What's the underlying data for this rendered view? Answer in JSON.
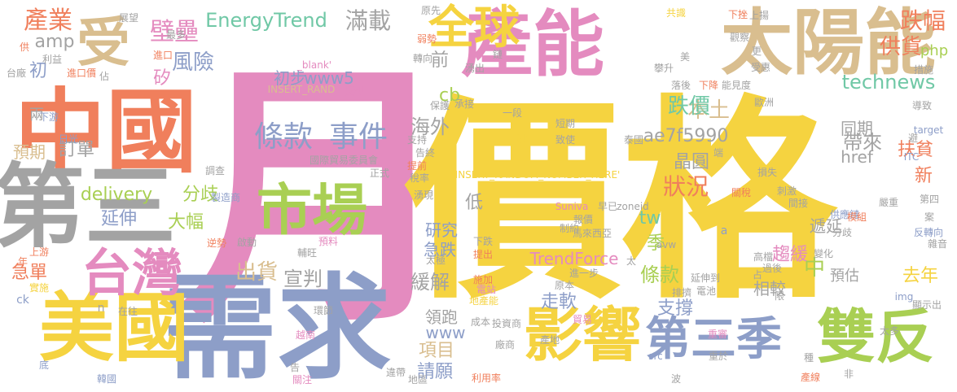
{
  "words": [
    {
      "text": "月",
      "color": "#e48bbf"
    },
    {
      "text": "價格",
      "color": "#f5d340"
    },
    {
      "text": "需求",
      "color": "#8d9ec8"
    },
    {
      "text": "中國",
      "color": "#f07f5c"
    },
    {
      "text": "第三",
      "color": "#a3a3a3"
    },
    {
      "text": "產能",
      "color": "#e48bbf"
    },
    {
      "text": "太陽能",
      "color": "#d9be8f"
    },
    {
      "text": "美國",
      "color": "#f5d340"
    },
    {
      "text": "影響",
      "color": "#f5d340"
    },
    {
      "text": "雙反",
      "color": "#a9cf53"
    },
    {
      "text": "第三季",
      "color": "#8d9ec8"
    },
    {
      "text": "市場",
      "color": "#a9cf53"
    },
    {
      "text": "全球",
      "color": "#f5d340"
    },
    {
      "text": "受",
      "color": "#d9be8f"
    },
    {
      "text": "台灣",
      "color": "#e48bbf"
    },
    {
      "text": "條款",
      "color": "#8d9ec8"
    },
    {
      "text": "事件",
      "color": "#8d9ec8"
    },
    {
      "text": "產業",
      "color": "#f07f5c"
    },
    {
      "text": "EnergyTrend",
      "color": "#70c8a6"
    },
    {
      "text": "滿載",
      "color": "#a3a3a3"
    },
    {
      "text": "跌幅",
      "color": "#f07f5c"
    },
    {
      "text": "壁壘",
      "color": "#e48bbf"
    },
    {
      "text": "風險",
      "color": "#8d9ec8"
    },
    {
      "text": "供貨",
      "color": "#f07f5c"
    },
    {
      "text": "php",
      "color": "#a9cf53"
    },
    {
      "text": "www5",
      "color": "#8d9ec8"
    },
    {
      "text": "初步",
      "color": "#8d9ec8"
    },
    {
      "text": "technews",
      "color": "#70c8a6"
    },
    {
      "text": "本土",
      "color": "#d9be8f"
    },
    {
      "text": "跌價",
      "color": "#70c8a6"
    },
    {
      "text": "海外",
      "color": "#a3a3a3"
    },
    {
      "text": "ae7f5990",
      "color": "#a3a3a3"
    },
    {
      "text": "晶圓",
      "color": "#a3a3a3"
    },
    {
      "text": "帶來",
      "color": "#a3a3a3"
    },
    {
      "text": "扶貧",
      "color": "#f07f5c"
    },
    {
      "text": "新",
      "color": "#f07f5c"
    },
    {
      "text": "訂單",
      "color": "#a3a3a3"
    },
    {
      "text": "預期",
      "color": "#d9be8f"
    },
    {
      "text": "delivery",
      "color": "#a9cf53"
    },
    {
      "text": "分歧",
      "color": "#a9cf53"
    },
    {
      "text": "延伸",
      "color": "#8d9ec8"
    },
    {
      "text": "大幅",
      "color": "#a9cf53"
    },
    {
      "text": "狀況",
      "color": "#f07f5c"
    },
    {
      "text": "tw",
      "color": "#70c8a6"
    },
    {
      "text": "趨緩",
      "color": "#e48bbf"
    },
    {
      "text": "預估",
      "color": "#a3a3a3"
    },
    {
      "text": "中",
      "color": "#a9cf53"
    },
    {
      "text": "去年",
      "color": "#f5d340"
    },
    {
      "text": "條款",
      "color": "#a9cf53"
    },
    {
      "text": "支撐",
      "color": "#8d9ec8"
    },
    {
      "text": "出貨",
      "color": "#d9be8f"
    },
    {
      "text": "宣判",
      "color": "#a3a3a3"
    },
    {
      "text": "緩解",
      "color": "#a3a3a3"
    },
    {
      "text": "急單",
      "color": "#f07f5c"
    },
    {
      "text": "走軟",
      "color": "#8d9ec8"
    },
    {
      "text": "項目",
      "color": "#d9be8f"
    },
    {
      "text": "請願",
      "color": "#8d9ec8"
    },
    {
      "text": "領跑",
      "color": "#a3a3a3"
    },
    {
      "text": "www",
      "color": "#8d9ec8"
    },
    {
      "text": "TrendForce",
      "color": "#e48bbf"
    },
    {
      "text": "研究",
      "color": "#8d9ec8"
    },
    {
      "text": "急跌",
      "color": "#8d9ec8"
    },
    {
      "text": "低",
      "color": "#a3a3a3"
    },
    {
      "text": "季",
      "color": "#a9cf53"
    },
    {
      "text": "相較",
      "color": "#a3a3a3"
    },
    {
      "text": "遞延",
      "color": "#a3a3a3"
    },
    {
      "text": "同期",
      "color": "#a3a3a3"
    },
    {
      "text": "href",
      "color": "#a3a3a3"
    },
    {
      "text": "cb",
      "color": "#a9cf53"
    },
    {
      "text": "前",
      "color": "#a3a3a3"
    },
    {
      "text": "amp",
      "color": "#a3a3a3"
    },
    {
      "text": "初",
      "color": "#8d9ec8"
    },
    {
      "text": "矽",
      "color": "#e48bbf"
    },
    {
      "text": "兩",
      "color": "#a3a3a3"
    },
    {
      "text": "_blank'",
      "color": "#e48bbf"
    },
    {
      "text": "INSERT_RAND",
      "color": "#d9be8f"
    },
    {
      "text": "反觀",
      "color": "#e48bbf"
    },
    {
      "text": "國際貿易委員會",
      "color": "#a3a3a3"
    },
    {
      "text": "正式",
      "color": "#a3a3a3"
    },
    {
      "text": "INSERT_RANDOM_NUMBER_HERE'",
      "color": "#f5d340"
    },
    {
      "text": "Suniva",
      "color": "#e48bbf"
    },
    {
      "text": "早已",
      "color": "#a3a3a3"
    },
    {
      "text": "馬來西亞",
      "color": "#a3a3a3"
    },
    {
      "text": "zoneid",
      "color": "#a3a3a3"
    },
    {
      "text": "一段",
      "color": "#a3a3a3"
    },
    {
      "text": "短期",
      "color": "#a3a3a3"
    },
    {
      "text": "致使",
      "color": "#a3a3a3"
    },
    {
      "text": "泰國",
      "color": "#a3a3a3"
    },
    {
      "text": "減少",
      "color": "#f5d340"
    },
    {
      "text": "avw",
      "color": "#a3a3a3"
    },
    {
      "text": "延伸到",
      "color": "#a3a3a3"
    },
    {
      "text": "電池",
      "color": "#a3a3a3"
    },
    {
      "text": "原本",
      "color": "#a3a3a3"
    },
    {
      "text": "ITC",
      "color": "#8d9ec8"
    },
    {
      "text": "img",
      "color": "#8d9ec8"
    },
    {
      "text": "target",
      "color": "#8d9ec8"
    },
    {
      "text": "src",
      "color": "#8d9ec8"
    },
    {
      "text": "ck",
      "color": "#8d9ec8"
    },
    {
      "text": "a",
      "color": "#8d9ec8"
    },
    {
      "text": "n",
      "color": "#a3a3a3"
    },
    {
      "text": "日光",
      "color": "#8d9ec8"
    },
    {
      "text": "調查",
      "color": "#a3a3a3"
    },
    {
      "text": "製造商",
      "color": "#8d9ec8"
    },
    {
      "text": "逆勢",
      "color": "#f07f5c"
    },
    {
      "text": "下游",
      "color": "#8d9ec8"
    },
    {
      "text": "上游",
      "color": "#f07f5c"
    },
    {
      "text": "年",
      "color": "#f07f5c"
    },
    {
      "text": "實施",
      "color": "#f5d340"
    },
    {
      "text": "韓國",
      "color": "#8d9ec8"
    },
    {
      "text": "底",
      "color": "#8d9ec8"
    },
    {
      "text": "關注",
      "color": "#e48bbf"
    },
    {
      "text": "告",
      "color": "#a3a3a3"
    },
    {
      "text": "越南",
      "color": "#e48bbf"
    },
    {
      "text": "環節",
      "color": "#a3a3a3"
    },
    {
      "text": "在往",
      "color": "#a3a3a3"
    },
    {
      "text": "啟動",
      "color": "#a3a3a3"
    },
    {
      "text": "輔旺",
      "color": "#a3a3a3"
    },
    {
      "text": "預料",
      "color": "#e48bbf"
    },
    {
      "text": "下跌",
      "color": "#a3a3a3"
    },
    {
      "text": "提出",
      "color": "#f07f5c"
    },
    {
      "text": "施加",
      "color": "#f07f5c"
    },
    {
      "text": "電站",
      "color": "#e48bbf"
    },
    {
      "text": "地產能",
      "color": "#f5d340"
    },
    {
      "text": "成本",
      "color": "#a3a3a3"
    },
    {
      "text": "投資商",
      "color": "#a3a3a3"
    },
    {
      "text": "貿易",
      "color": "#e48bbf"
    },
    {
      "text": "產地",
      "color": "#a3a3a3"
    },
    {
      "text": "廠商",
      "color": "#a3a3a3"
    },
    {
      "text": "利用率",
      "color": "#f07f5c"
    },
    {
      "text": "地區",
      "color": "#a3a3a3"
    },
    {
      "text": "違帶",
      "color": "#a3a3a3"
    },
    {
      "text": "限",
      "color": "#a3a3a3"
    },
    {
      "text": "重審",
      "color": "#e48bbf"
    },
    {
      "text": "重於",
      "color": "#a3a3a3"
    },
    {
      "text": "波",
      "color": "#a3a3a3"
    },
    {
      "text": "產線",
      "color": "#f07f5c"
    },
    {
      "text": "非",
      "color": "#a3a3a3"
    },
    {
      "text": "種",
      "color": "#a3a3a3"
    },
    {
      "text": "刺激",
      "color": "#a3a3a3"
    },
    {
      "text": "損失",
      "color": "#a3a3a3"
    },
    {
      "text": "間接",
      "color": "#a3a3a3"
    },
    {
      "text": "供應鏈",
      "color": "#8d9ec8"
    },
    {
      "text": "嚴重",
      "color": "#a3a3a3"
    },
    {
      "text": "第四",
      "color": "#a3a3a3"
    },
    {
      "text": "案",
      "color": "#a3a3a3"
    },
    {
      "text": "雜音",
      "color": "#a3a3a3"
    },
    {
      "text": "反轉向",
      "color": "#8d9ec8"
    },
    {
      "text": "顯示出",
      "color": "#a3a3a3"
    },
    {
      "text": "太多",
      "color": "#a3a3a3"
    },
    {
      "text": "占",
      "color": "#a3a3a3"
    },
    {
      "text": "模組",
      "color": "#f07f5c"
    },
    {
      "text": "變化",
      "color": "#a3a3a3"
    },
    {
      "text": "高檔",
      "color": "#a3a3a3"
    },
    {
      "text": "過後",
      "color": "#a3a3a3"
    },
    {
      "text": "分歧",
      "color": "#a3a3a3"
    },
    {
      "text": "措施",
      "color": "#a3a3a3"
    },
    {
      "text": "共識",
      "color": "#f5d340"
    },
    {
      "text": "下挫",
      "color": "#f07f5c"
    },
    {
      "text": "上揚",
      "color": "#a3a3a3"
    },
    {
      "text": "觀察",
      "color": "#a3a3a3"
    },
    {
      "text": "更",
      "color": "#a3a3a3"
    },
    {
      "text": "美",
      "color": "#a3a3a3"
    },
    {
      "text": "攀升",
      "color": "#a3a3a3"
    },
    {
      "text": "受惠",
      "color": "#a3a3a3"
    },
    {
      "text": "落後",
      "color": "#a3a3a3"
    },
    {
      "text": "下降",
      "color": "#f07f5c"
    },
    {
      "text": "能見度",
      "color": "#a3a3a3"
    },
    {
      "text": "歐洲",
      "color": "#a3a3a3"
    },
    {
      "text": "導致",
      "color": "#a3a3a3"
    },
    {
      "text": "避",
      "color": "#a3a3a3"
    },
    {
      "text": "端",
      "color": "#a3a3a3"
    },
    {
      "text": "關稅",
      "color": "#f07f5c"
    },
    {
      "text": "排擠",
      "color": "#a3a3a3"
    },
    {
      "text": "太",
      "color": "#a3a3a3"
    },
    {
      "text": "報價",
      "color": "#a3a3a3"
    },
    {
      "text": "制約",
      "color": "#a3a3a3"
    },
    {
      "text": "進一步",
      "color": "#a3a3a3"
    },
    {
      "text": "太極",
      "color": "#a3a3a3"
    },
    {
      "text": "保護",
      "color": "#a3a3a3"
    },
    {
      "text": "承接",
      "color": "#a3a3a3"
    },
    {
      "text": "支持",
      "color": "#a3a3a3"
    },
    {
      "text": "提前",
      "color": "#f07f5c"
    },
    {
      "text": "告終",
      "color": "#a3a3a3"
    },
    {
      "text": "稅率",
      "color": "#a3a3a3"
    },
    {
      "text": "湧現",
      "color": "#a3a3a3"
    },
    {
      "text": "弱勢",
      "color": "#f07f5c"
    },
    {
      "text": "轉向",
      "color": "#a3a3a3"
    },
    {
      "text": "鏈",
      "color": "#a3a3a3"
    },
    {
      "text": "湧出",
      "color": "#a3a3a3"
    },
    {
      "text": "原先",
      "color": "#a3a3a3"
    },
    {
      "text": "供",
      "color": "#f07f5c"
    },
    {
      "text": "利益",
      "color": "#a3a3a3"
    },
    {
      "text": "台廠",
      "color": "#a3a3a3"
    },
    {
      "text": "進口價",
      "color": "#f07f5c"
    },
    {
      "text": "佔",
      "color": "#a3a3a3"
    },
    {
      "text": "展望",
      "color": "#a3a3a3"
    },
    {
      "text": "進口",
      "color": "#f07f5c"
    },
    {
      "text": "最多",
      "color": "#a3a3a3"
    }
  ]
}
